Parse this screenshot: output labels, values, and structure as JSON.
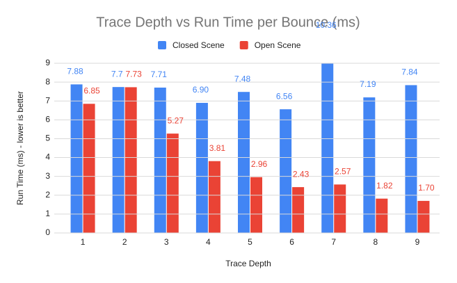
{
  "chart_data": {
    "type": "bar",
    "title": "Trace Depth vs Run Time per Bounce (ms)",
    "x_label": "Trace Depth",
    "y_label": "Run Time (ms) - lower is better",
    "categories": [
      "1",
      "2",
      "3",
      "4",
      "5",
      "6",
      "7",
      "8",
      "9"
    ],
    "series": [
      {
        "name": "Closed Scene",
        "color": "#4285f4",
        "values": [
          7.88,
          7.74,
          7.71,
          6.9,
          7.48,
          6.56,
          10.36,
          7.19,
          7.84
        ],
        "value_labels": [
          "7.88",
          "7.7",
          "7.71",
          "6.90",
          "7.48",
          "6.56",
          "10.36",
          "7.19",
          "7.84"
        ]
      },
      {
        "name": "Open Scene",
        "color": "#ea4335",
        "values": [
          6.85,
          7.73,
          5.27,
          3.81,
          2.96,
          2.43,
          2.57,
          1.82,
          1.7
        ],
        "value_labels": [
          "6.85",
          "7.73",
          "5.27",
          "3.81",
          "2.96",
          "2.43",
          "2.57",
          "1.82",
          "1.70"
        ]
      }
    ],
    "ylim": [
      0,
      9
    ],
    "yticks": [
      0,
      1,
      2,
      3,
      4,
      5,
      6,
      7,
      8,
      9
    ],
    "grid": true,
    "legend": "top"
  }
}
